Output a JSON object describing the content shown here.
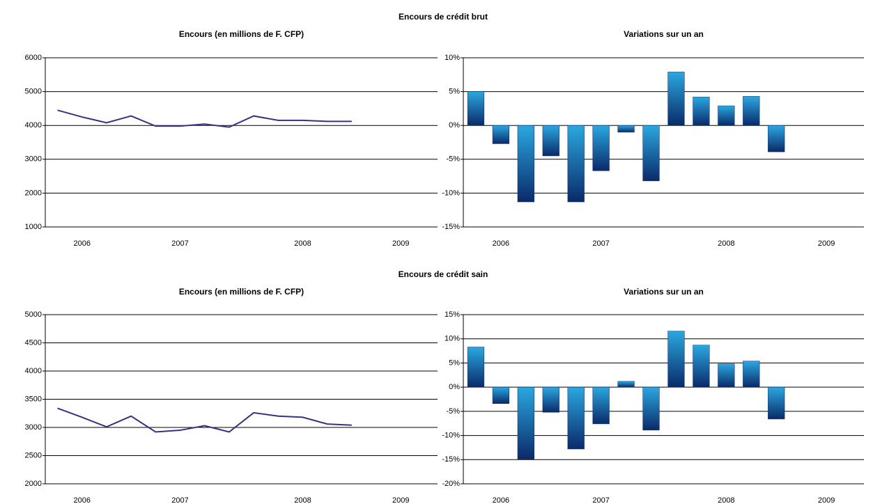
{
  "section_titles": [
    "Encours de crédit brut",
    "Encours de crédit sain"
  ],
  "chart_data": [
    {
      "type": "line",
      "title": "Encours (en millions de F. CFP)",
      "categories": [
        null,
        "2006",
        null,
        null,
        null,
        "2007",
        null,
        null,
        null,
        null,
        "2008",
        null,
        null,
        null,
        "2009",
        null
      ],
      "values": [
        4450,
        4250,
        4080,
        4280,
        3980,
        3980,
        4040,
        3950,
        4280,
        4150,
        4150,
        4120,
        4120,
        null,
        null,
        null
      ],
      "color": "#33337f",
      "ylim": [
        1000,
        6000
      ],
      "yticks": [
        1000,
        2000,
        3000,
        4000,
        5000,
        6000
      ],
      "grid": true
    },
    {
      "type": "bar",
      "title": "Variations sur un an",
      "categories": [
        null,
        "2006",
        null,
        null,
        null,
        "2007",
        null,
        null,
        null,
        null,
        "2008",
        null,
        null,
        null,
        "2009",
        null
      ],
      "values": [
        5.0,
        -2.7,
        -11.3,
        -4.5,
        -11.3,
        -6.7,
        -1.0,
        -8.2,
        7.9,
        4.2,
        2.9,
        4.3,
        -3.9,
        null,
        null,
        null
      ],
      "color": "#2aa8e0",
      "ylim": [
        -15,
        10
      ],
      "yticks": [
        {
          "value": -15,
          "label": "-15%"
        },
        {
          "value": -10,
          "label": "-10%"
        },
        {
          "value": -5,
          "label": "-5%"
        },
        {
          "value": 0,
          "label": "0%"
        },
        {
          "value": 5,
          "label": "5%"
        },
        {
          "value": 10,
          "label": "10%"
        }
      ],
      "grid": true
    },
    {
      "type": "line",
      "title": "Encours (en millions de F. CFP)",
      "categories": [
        null,
        "2006",
        null,
        null,
        null,
        "2007",
        null,
        null,
        null,
        null,
        "2008",
        null,
        null,
        null,
        "2009",
        null
      ],
      "values": [
        3340,
        3180,
        3010,
        3200,
        2920,
        2950,
        3030,
        2920,
        3260,
        3200,
        3180,
        3060,
        3040,
        null,
        null,
        null
      ],
      "color": "#33337f",
      "ylim": [
        2000,
        5000
      ],
      "yticks": [
        2000,
        2500,
        3000,
        3500,
        4000,
        4500,
        5000
      ],
      "grid": true
    },
    {
      "type": "bar",
      "title": "Variations sur un an",
      "categories": [
        null,
        "2006",
        null,
        null,
        null,
        "2007",
        null,
        null,
        null,
        null,
        "2008",
        null,
        null,
        null,
        "2009",
        null
      ],
      "values": [
        8.3,
        -3.4,
        -14.9,
        -5.2,
        -12.8,
        -7.6,
        1.2,
        -8.9,
        11.6,
        8.7,
        4.8,
        5.4,
        -6.6,
        null,
        null,
        null
      ],
      "color": "#2aa8e0",
      "ylim": [
        -20,
        15
      ],
      "yticks": [
        {
          "value": -20,
          "label": "-20%"
        },
        {
          "value": -15,
          "label": "-15%"
        },
        {
          "value": -10,
          "label": "-10%"
        },
        {
          "value": -5,
          "label": "-5%"
        },
        {
          "value": 0,
          "label": "0%"
        },
        {
          "value": 5,
          "label": "5%"
        },
        {
          "value": 10,
          "label": "10%"
        },
        {
          "value": 15,
          "label": "15%"
        }
      ],
      "grid": true
    }
  ]
}
